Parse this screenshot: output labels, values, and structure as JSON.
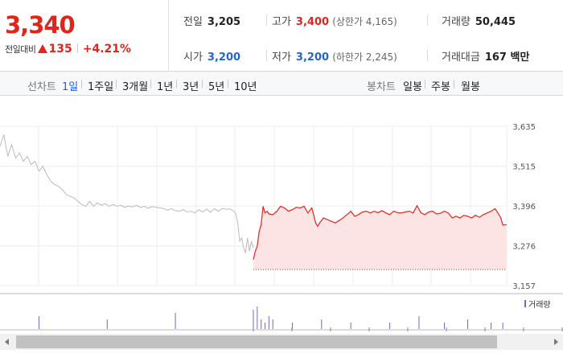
{
  "quote": {
    "price": "3,340",
    "change_label": "전일대비",
    "change": "135",
    "change_pct": "+4.21%",
    "prev_close_label": "전일",
    "prev_close": "3,205",
    "high_label": "고가",
    "high": "3,400",
    "upper_limit": "(상한가 4,165)",
    "volume_label": "거래량",
    "volume": "50,445",
    "open_label": "시가",
    "open": "3,200",
    "low_label": "저가",
    "low": "3,200",
    "lower_limit": "(하한가 2,245)",
    "amount_label": "거래대금",
    "amount": "167 백만"
  },
  "colors": {
    "up": "#e0251b",
    "down": "#2466c8",
    "fill": "#fde4e4",
    "volume": "#7a63c4",
    "prev": "#bbbbbb"
  },
  "period_bar": {
    "line_label": "선차트",
    "line_options": [
      "1일",
      "1주일",
      "3개월",
      "1년",
      "3년",
      "5년",
      "10년"
    ],
    "line_active": "1일",
    "candle_label": "봉차트",
    "candle_options": [
      "일봉",
      "주봉",
      "월봉"
    ]
  },
  "chart_data": {
    "type": "line",
    "title": "",
    "ylim": [
      3157,
      3635
    ],
    "y_ticks": [
      "3,635",
      "3,515",
      "3,396",
      "3,276",
      "3,157"
    ],
    "reference_value": 3205,
    "volume_legend": "거래량",
    "series": [
      {
        "name": "prev_day",
        "x": [
          0,
          2,
          4,
          6,
          8,
          10,
          12,
          14,
          16,
          18,
          20,
          22,
          24,
          26,
          28,
          30,
          32,
          34,
          36,
          38,
          40,
          42,
          44,
          46,
          48,
          50,
          52,
          54,
          56,
          58,
          60,
          62,
          64,
          66,
          68,
          70,
          72,
          74,
          76,
          78,
          80,
          82,
          84,
          86,
          88,
          90,
          92,
          94,
          96,
          98,
          100,
          102,
          104,
          106,
          108,
          110,
          112,
          114,
          116,
          118,
          120,
          121,
          122,
          123,
          124,
          125,
          126,
          127,
          128,
          129,
          130
        ],
        "values": [
          3575,
          3610,
          3545,
          3580,
          3540,
          3555,
          3530,
          3545,
          3520,
          3530,
          3500,
          3515,
          3490,
          3470,
          3460,
          3455,
          3445,
          3430,
          3425,
          3420,
          3410,
          3400,
          3395,
          3410,
          3395,
          3405,
          3398,
          3403,
          3395,
          3400,
          3395,
          3398,
          3392,
          3396,
          3393,
          3398,
          3391,
          3395,
          3389,
          3394,
          3392,
          3390,
          3388,
          3383,
          3388,
          3382,
          3380,
          3385,
          3378,
          3380,
          3375,
          3385,
          3378,
          3387,
          3377,
          3388,
          3380,
          3388,
          3386,
          3387,
          3380,
          3372,
          3345,
          3290,
          3300,
          3270,
          3255,
          3300,
          3260,
          3290,
          3270
        ]
      },
      {
        "name": "today",
        "x": [
          130,
          131,
          132,
          133,
          134,
          135,
          136,
          137,
          138,
          140,
          142,
          144,
          146,
          148,
          150,
          152,
          154,
          156,
          158,
          160,
          162,
          163,
          164,
          166,
          168,
          170,
          172,
          174,
          176,
          178,
          180,
          182,
          184,
          186,
          188,
          190,
          192,
          194,
          196,
          198,
          200,
          202,
          204,
          206,
          208,
          210,
          212,
          214,
          216,
          218,
          220,
          222,
          224,
          226,
          228,
          230,
          232,
          234,
          236,
          238,
          240,
          242,
          244,
          246,
          248,
          250,
          252,
          254,
          256,
          257,
          258,
          260
        ],
        "values": [
          3235,
          3260,
          3275,
          3320,
          3340,
          3395,
          3375,
          3380,
          3372,
          3370,
          3380,
          3395,
          3390,
          3380,
          3385,
          3392,
          3390,
          3395,
          3375,
          3390,
          3345,
          3335,
          3345,
          3360,
          3355,
          3350,
          3345,
          3352,
          3360,
          3370,
          3380,
          3365,
          3370,
          3378,
          3380,
          3375,
          3380,
          3376,
          3382,
          3375,
          3370,
          3380,
          3376,
          3375,
          3378,
          3380,
          3375,
          3397,
          3375,
          3370,
          3378,
          3380,
          3372,
          3374,
          3380,
          3375,
          3360,
          3365,
          3360,
          3368,
          3365,
          3360,
          3368,
          3362,
          3370,
          3375,
          3380,
          3388,
          3370,
          3360,
          3338,
          3340
        ]
      }
    ],
    "volume": {
      "x": [
        20,
        55,
        90,
        130,
        132,
        134,
        136,
        138,
        140,
        150,
        165,
        180,
        200,
        215,
        228,
        240,
        252,
        258
      ],
      "values": [
        4,
        3,
        5,
        6,
        7,
        3,
        2,
        4,
        3,
        2,
        3,
        2,
        2,
        4,
        2,
        3,
        2,
        2
      ]
    }
  }
}
